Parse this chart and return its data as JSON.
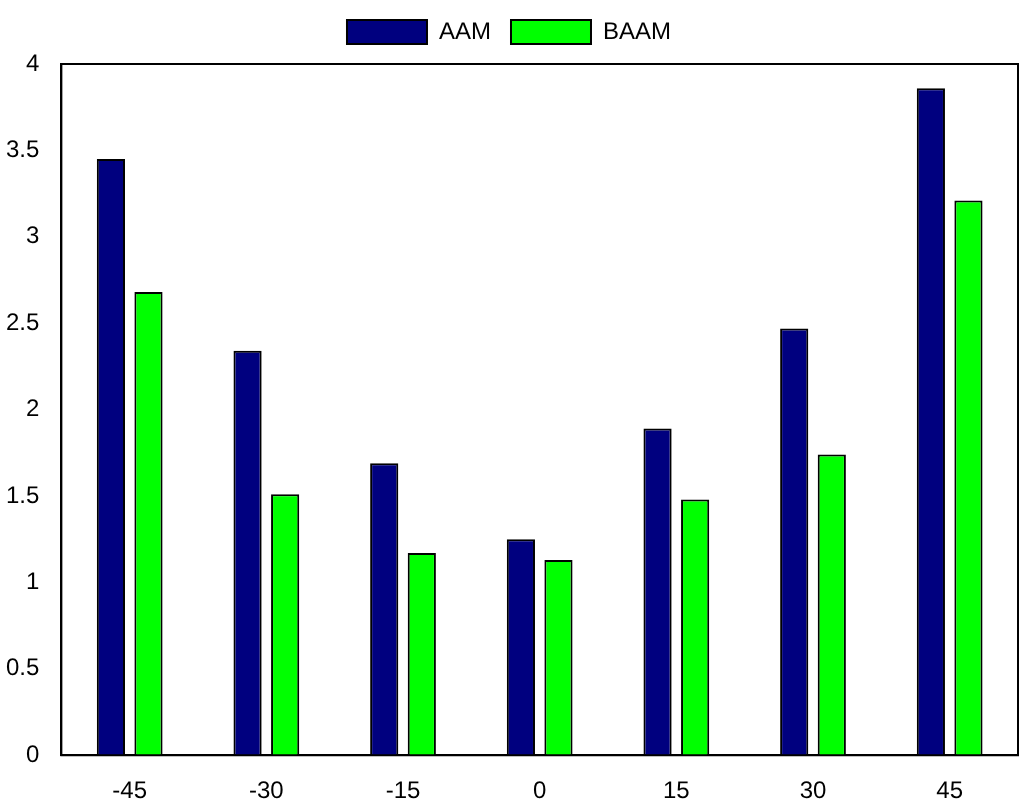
{
  "chart_data": {
    "type": "bar",
    "categories": [
      "-45",
      "-30",
      "-15",
      "0",
      "15",
      "30",
      "45"
    ],
    "series": [
      {
        "name": "AAM",
        "color": "#00007f",
        "values": [
          3.45,
          2.34,
          1.69,
          1.25,
          1.89,
          2.47,
          3.86
        ]
      },
      {
        "name": "BAAM",
        "color": "#00ff00",
        "values": [
          2.68,
          1.51,
          1.17,
          1.13,
          1.48,
          1.74,
          3.21
        ]
      }
    ],
    "ylim": [
      0,
      4
    ],
    "yticks": [
      0,
      0.5,
      1,
      1.5,
      2,
      2.5,
      3,
      3.5,
      4
    ],
    "grid": false,
    "legend": "top"
  }
}
